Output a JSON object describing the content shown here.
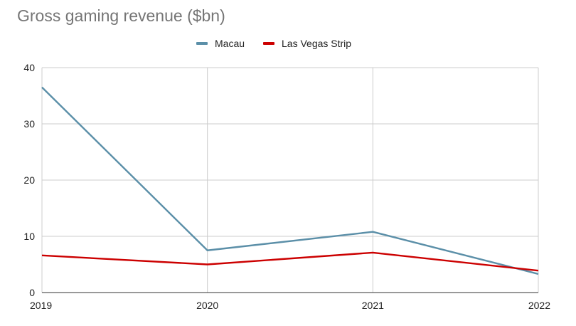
{
  "chart_data": {
    "type": "line",
    "title": "Gross gaming revenue ($bn)",
    "xlabel": "",
    "ylabel": "",
    "categories": [
      "2019",
      "2020",
      "2021",
      "2022"
    ],
    "series": [
      {
        "name": "Macau",
        "color": "#5b8fa8",
        "values": [
          36.5,
          7.5,
          10.8,
          3.3
        ]
      },
      {
        "name": "Las Vegas Strip",
        "color": "#cc0000",
        "values": [
          6.6,
          5.0,
          7.1,
          3.9
        ]
      }
    ],
    "ylim": [
      0,
      40
    ],
    "yticks": [
      "0",
      "10",
      "20",
      "30",
      "40"
    ],
    "grid": true,
    "legend_position": "top-center"
  }
}
